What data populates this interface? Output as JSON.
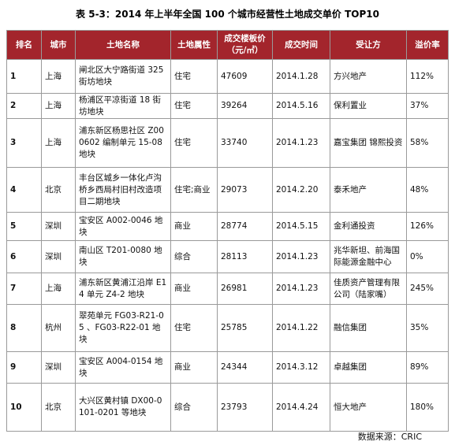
{
  "title": "表 5-3：2014 年上半年全国 100 个城市经营性土地成交单价 TOP10",
  "table": {
    "header": [
      "排名",
      "城市",
      "土地名称",
      "土地属性",
      "成交楼板价（元/㎡）",
      "成交时间",
      "受让方",
      "溢价率"
    ],
    "rows": [
      [
        1,
        "上海",
        "闸北区大宁路街道 325 街坊地块",
        "住宅",
        47609,
        "2014.1.28",
        "方兴地产",
        "112%"
      ],
      [
        2,
        "上海",
        "杨浦区平凉街道 18 街坊地块",
        "住宅",
        39264,
        "2014.5.16",
        "保利置业",
        "37%"
      ],
      [
        3,
        "上海",
        "浦东新区杨思社区 Z000602 编制单元 15-08 地块",
        "住宅",
        33740,
        "2014.1.23",
        "嘉宝集团 锦熙投资",
        "58%"
      ],
      [
        4,
        "北京",
        "丰台区城乡一体化卢沟桥乡西局村旧村改造项目二期地块",
        "住宅;商业",
        29073,
        "2014.2.20",
        "泰禾地产",
        "48%"
      ],
      [
        5,
        "深圳",
        "宝安区 A002-0046 地块",
        "商业",
        28774,
        "2014.5.15",
        "金利通投资",
        "126%"
      ],
      [
        6,
        "深圳",
        "南山区 T201-0080 地块",
        "综合",
        28113,
        "2014.1.23",
        "兆华新坦、前海国际能源金融中心",
        "0%"
      ],
      [
        7,
        "上海",
        "浦东新区黄浦江沿岸 E14 单元 Z4-2 地块",
        "商业",
        26981,
        "2014.1.23",
        "佳质资产管理有限公司（陆家嘴）",
        "245%"
      ],
      [
        8,
        "杭州",
        "翠苑单元 FG03-R21-05 、FG03-R22-01 地块",
        "住宅",
        25785,
        "2014.1.22",
        "融信集团",
        "35%"
      ],
      [
        9,
        "深圳",
        "宝安区 A004-0154 地块",
        "商业",
        24344,
        "2014.3.12",
        "卓越集团",
        "89%"
      ],
      [
        10,
        "北京",
        "大兴区黄村镇 DX00-0101-0201 等地块",
        "综合",
        23793,
        "2014.4.24",
        "恒大地产",
        "180%"
      ]
    ]
  },
  "source": "数据来源：CRIC"
}
